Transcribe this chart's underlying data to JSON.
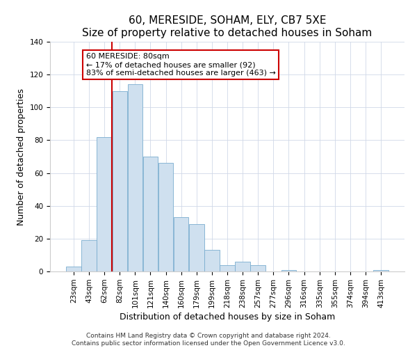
{
  "title": "60, MERESIDE, SOHAM, ELY, CB7 5XE",
  "subtitle": "Size of property relative to detached houses in Soham",
  "xlabel": "Distribution of detached houses by size in Soham",
  "ylabel": "Number of detached properties",
  "bar_labels": [
    "23sqm",
    "43sqm",
    "62sqm",
    "82sqm",
    "101sqm",
    "121sqm",
    "140sqm",
    "160sqm",
    "179sqm",
    "199sqm",
    "218sqm",
    "238sqm",
    "257sqm",
    "277sqm",
    "296sqm",
    "316sqm",
    "335sqm",
    "355sqm",
    "374sqm",
    "394sqm",
    "413sqm"
  ],
  "bar_values": [
    3,
    19,
    82,
    110,
    114,
    70,
    66,
    33,
    29,
    13,
    4,
    6,
    4,
    0,
    1,
    0,
    0,
    0,
    0,
    0,
    1
  ],
  "bar_color": "#cfe0ef",
  "bar_edgecolor": "#7aadcf",
  "vline_color": "#cc0000",
  "vline_x_idx": 2.5,
  "annotation_text": "60 MERESIDE: 80sqm\n← 17% of detached houses are smaller (92)\n83% of semi-detached houses are larger (463) →",
  "annotation_box_facecolor": "#ffffff",
  "annotation_box_edgecolor": "#cc0000",
  "ylim": [
    0,
    140
  ],
  "yticks": [
    0,
    20,
    40,
    60,
    80,
    100,
    120,
    140
  ],
  "footer_line1": "Contains HM Land Registry data © Crown copyright and database right 2024.",
  "footer_line2": "Contains public sector information licensed under the Open Government Licence v3.0.",
  "title_fontsize": 11,
  "axis_label_fontsize": 9,
  "tick_fontsize": 7.5,
  "footer_fontsize": 6.5,
  "annotation_fontsize": 8
}
